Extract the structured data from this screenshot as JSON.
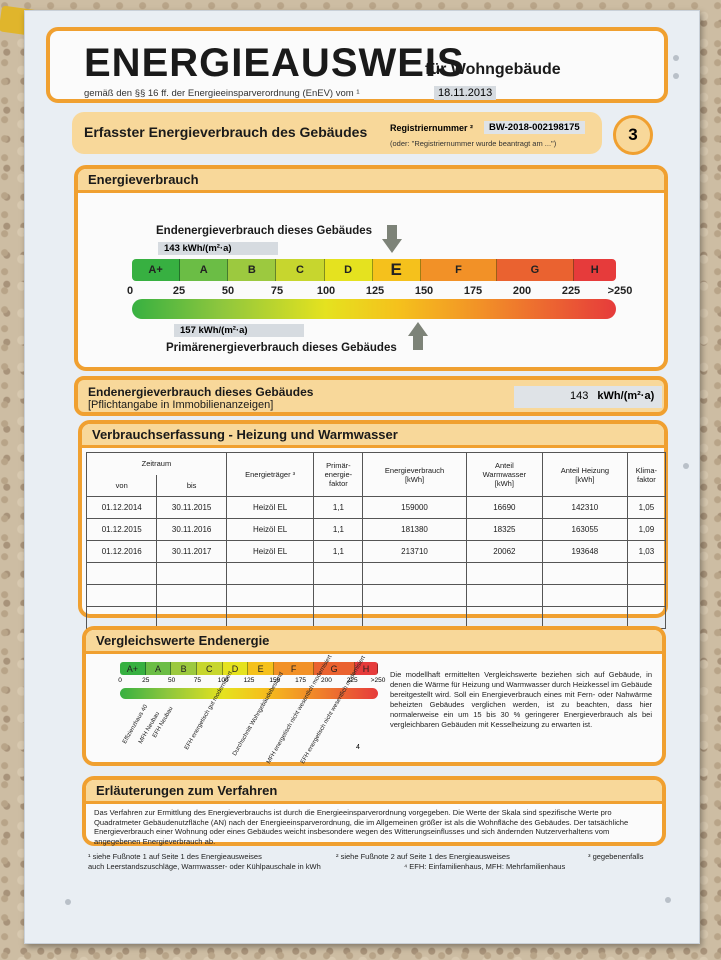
{
  "header": {
    "title": "ENERGIEAUSWEIS",
    "subtitle": "für Wohngebäude",
    "law": "gemäß den §§ 16 ff. der Energieeinsparverordnung (EnEV) vom ¹",
    "date": "18.11.2013"
  },
  "erfasster": {
    "title": "Erfasster Energieverbrauch des Gebäudes",
    "reg_label": "Registriernummer ²",
    "reg_number": "BW-2018-002198175",
    "reg_note": "(oder: \"Registriernummer wurde beantragt am ...\")",
    "page_number": "3"
  },
  "energieverbrauch": {
    "heading": "Energieverbrauch",
    "end_label": "Endenergieverbrauch dieses Gebäudes",
    "end_value": "143  kWh/(m²·a)",
    "end_numeric": 143,
    "primary_label": "Primärenergieverbrauch dieses Gebäudes",
    "primary_value": "157  kWh/(m²·a)",
    "primary_numeric": 157,
    "classes": [
      "A+",
      "A",
      "B",
      "C",
      "D",
      "E",
      "F",
      "G",
      "H"
    ],
    "ticks": [
      "0",
      "25",
      "50",
      "75",
      "100",
      "125",
      "150",
      "175",
      "200",
      "225",
      ">250"
    ]
  },
  "endenergie": {
    "title": "Endenergieverbrauch dieses Gebäudes",
    "subtitle": "[Pflichtangabe in Immobilienanzeigen]",
    "value": "143",
    "unit": "kWh/(m²·a)"
  },
  "table": {
    "heading": "Verbrauchserfassung - Heizung und Warmwasser",
    "headers": {
      "zeitraum": "Zeitraum",
      "von": "von",
      "bis": "bis",
      "traeger": "Energieträger ³",
      "faktor": "Primär-\nenergie-\nfaktor",
      "verbrauch": "Energieverbrauch\n[kWh]",
      "warmwasser": "Anteil\nWarmwasser\n[kWh]",
      "heizung": "Anteil Heizung\n[kWh]",
      "klima": "Klima-\nfaktor"
    },
    "rows": [
      [
        "01.12.2014",
        "30.11.2015",
        "Heizöl EL",
        "1,1",
        "159000",
        "16690",
        "142310",
        "1,05"
      ],
      [
        "01.12.2015",
        "30.11.2016",
        "Heizöl EL",
        "1,1",
        "181380",
        "18325",
        "163055",
        "1,09"
      ],
      [
        "01.12.2016",
        "30.11.2017",
        "Heizöl EL",
        "1,1",
        "213710",
        "20062",
        "193648",
        "1,03"
      ]
    ]
  },
  "vergleich": {
    "heading": "Vergleichswerte Endenergie",
    "classes": [
      "A+",
      "A",
      "B",
      "C",
      "D",
      "E",
      "F",
      "G",
      "H"
    ],
    "ticks": [
      "0",
      "25",
      "50",
      "75",
      "100",
      "125",
      "150",
      "175",
      "200",
      "225",
      ">250"
    ],
    "refs": [
      "Effizienzhaus 40",
      "MFH Neubau",
      "EFH Neubau",
      "EFH energetisch gut modernisiert",
      "Durchschnitt Wohngebäudebestand",
      "MFH energetisch nicht wesentlich modernisiert",
      "EFH energetisch nicht wesentlich modernisiert"
    ],
    "text": "Die modellhaft ermittelten Vergleichswerte beziehen sich auf Gebäude, in denen die Wärme für Heizung und Warmwasser durch Heizkessel im Gebäude bereitgestellt wird. Soll ein Energieverbrauch eines mit Fern- oder Nahwärme beheizten Gebäudes verglichen werden, ist zu beachten, dass hier normalerweise ein um 15 bis 30 % geringerer Energieverbrauch als bei vergleichbaren Gebäuden mit Kesselheizung zu erwarten ist.",
    "footnote": "4"
  },
  "erlaeuterungen": {
    "heading": "Erläuterungen zum Verfahren",
    "text": "Das Verfahren zur Ermittlung des Energieverbrauchs ist durch die Energieeinsparverordnung vorgegeben. Die Werte der Skala sind spezifische Werte pro Quadratmeter Gebäudenutzfläche (AN) nach der Energieeinsparverordnung, die im Allgemeinen größer ist als die Wohnfläche des Gebäudes. Der tatsächliche Energieverbrauch einer Wohnung oder eines Gebäudes weicht insbesondere wegen des Witterungseinflusses und sich ändernden Nutzerverhaltens vom angegebenen Energieverbrauch ab."
  },
  "footnotes": {
    "f1": "¹ siehe Fußnote 1 auf Seite 1 des Energieausweises",
    "f1b": "auch Leerstandszuschläge, Warmwasser- oder Kühlpauschale in kWh",
    "f2": "² siehe Fußnote 2 auf Seite 1 des Energieausweises",
    "f4": "⁴ EFH: Einfamilienhaus, MFH: Mehrfamilienhaus",
    "f3": "³ gegebenenfalls"
  },
  "colors": {
    "accent": "#f0a030",
    "header_fill": "#f8d89a",
    "scale": [
      "#37b041",
      "#6bbd45",
      "#9cc93f",
      "#c7d62e",
      "#e5e21f",
      "#f5c11c",
      "#f29127",
      "#ea6230",
      "#e63b3b"
    ]
  }
}
